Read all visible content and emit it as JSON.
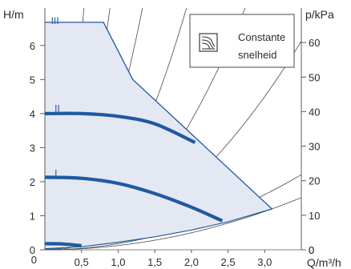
{
  "chart_data": {
    "type": "line",
    "y_left_label": "H/m",
    "y_right_label": "p/kPa",
    "x_label": "Q/m³/h",
    "xlim": [
      0,
      3.5
    ],
    "ylim_left": [
      0,
      7.1
    ],
    "ylim_right": [
      0,
      70
    ],
    "x_ticks": [
      0,
      0.5,
      1.0,
      1.5,
      2.0,
      2.5,
      3.0
    ],
    "x_tick_labels": [
      "0",
      "0,5",
      "1,0",
      "1,5",
      "2,0",
      "2,5",
      "3,0"
    ],
    "y_left_ticks": [
      0,
      1,
      2,
      3,
      4,
      5,
      6
    ],
    "y_right_ticks": [
      0,
      10,
      20,
      30,
      40,
      50,
      60
    ],
    "legend": {
      "line1": "Constante",
      "line2": "snelheid",
      "position": "top-right",
      "icon": "constant-speed-icon"
    },
    "colors": {
      "curve": "#1f5aa0",
      "fill": "#e4e8f2",
      "grid": "#5c5c5c",
      "system": "#4a4a4a"
    },
    "series": [
      {
        "name": "III",
        "label_at": [
          0.05,
          6.68
        ],
        "points": [
          [
            0,
            6.68
          ],
          [
            0.8,
            6.68
          ],
          [
            1.2,
            5.0
          ],
          [
            2.0,
            3.4
          ],
          [
            3.1,
            1.2
          ]
        ]
      },
      {
        "name": "II",
        "label_at": [
          0.1,
          4.1
        ],
        "points": [
          [
            0,
            4.0
          ],
          [
            0.5,
            4.0
          ],
          [
            1.0,
            3.92
          ],
          [
            1.5,
            3.7
          ],
          [
            2.05,
            3.15
          ]
        ]
      },
      {
        "name": "I",
        "label_at": [
          0.1,
          2.2
        ],
        "points": [
          [
            0,
            2.13
          ],
          [
            0.5,
            2.1
          ],
          [
            1.0,
            1.95
          ],
          [
            1.5,
            1.65
          ],
          [
            2.0,
            1.25
          ],
          [
            2.42,
            0.85
          ]
        ]
      },
      {
        "name": "",
        "points": [
          [
            0,
            0.18
          ],
          [
            0.25,
            0.17
          ],
          [
            0.5,
            0.12
          ]
        ]
      }
    ],
    "min_curve": [
      [
        0,
        0.03
      ],
      [
        0.5,
        0.09
      ],
      [
        1.0,
        0.22
      ],
      [
        1.5,
        0.38
      ],
      [
        2.0,
        0.58
      ],
      [
        2.5,
        0.82
      ],
      [
        3.1,
        1.2
      ]
    ],
    "system_curves_k": [
      25,
      9,
      4,
      1.9,
      0.95,
      0.5,
      0.18,
      0.125
    ]
  }
}
